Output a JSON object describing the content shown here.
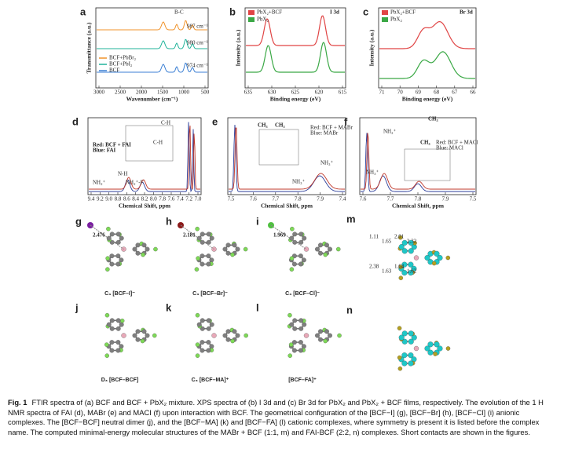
{
  "panels": {
    "a": {
      "label": "a",
      "ylabel": "Transmittance (a.u.)",
      "xlabel": "Wavenumber (cm⁻¹)",
      "xticks": [
        "3000",
        "2500",
        "2000",
        "1500",
        "1000",
        "500"
      ],
      "annotations": [
        "B-C",
        "987 cm⁻¹",
        "980 cm⁻¹",
        "974 cm⁻¹"
      ],
      "legend": [
        "BCF+PbBr₂",
        "BCF+PbI₂",
        "BCF"
      ]
    },
    "b": {
      "label": "b",
      "ylabel": "Intensity (a.u.)",
      "xlabel": "Binding energy (eV)",
      "xticks": [
        "635",
        "630",
        "625",
        "620",
        "615"
      ],
      "annotations": [
        "I 3d"
      ],
      "legend": [
        "PbX₂+BCF",
        "PbX₂"
      ]
    },
    "c": {
      "label": "c",
      "ylabel": "Intensity (a.u.)",
      "xlabel": "Binding energy (eV)",
      "xticks": [
        "71",
        "70",
        "69",
        "68",
        "67",
        "66"
      ],
      "annotations": [
        "Br 3d"
      ],
      "legend": [
        "PbX₂+BCF",
        "PbX₂"
      ]
    },
    "d": {
      "label": "d",
      "xlabel": "Chemical Shift, ppm",
      "xticks": [
        "9.4",
        "9.2",
        "9.0",
        "8.8",
        "8.6",
        "8.4",
        "8.2",
        "8.0",
        "7.8",
        "7.6",
        "7.4",
        "7.2",
        "7.0"
      ],
      "annotations": [
        "Red: BCF + FAI",
        "Blue: FAI",
        "C-H",
        "C-H",
        "N-H",
        "NH₂⁺-F",
        "NH₂⁺"
      ]
    },
    "e": {
      "label": "e",
      "xlabel": "Chemical Shift, ppm",
      "xticks": [
        "7.5",
        "7.6",
        "7.7",
        "7.8",
        "7.9",
        "7.4"
      ],
      "annotations": [
        "CH₃",
        "CH₃",
        "Red: BCF + MABr",
        "Blue: MABr",
        "NH₃⁺",
        "NH₃⁺"
      ]
    },
    "f": {
      "label": "f",
      "xlabel": "Chemical Shift, ppm",
      "xticks": [
        "7.6",
        "7.7",
        "7.8",
        "7.9",
        "7.5"
      ],
      "annotations": [
        "CH₃",
        "CH₃",
        "Red: BCF + MACl",
        "Blue: MACl",
        "NH₂⁺",
        "NH₃⁺"
      ]
    },
    "g": {
      "label": "g",
      "name": "C₃ [BCF–I]⁻",
      "distance": "2.476"
    },
    "h": {
      "label": "h",
      "name": "C₃ [BCF–Br]⁻",
      "distance": "2.181"
    },
    "i": {
      "label": "i",
      "name": "C₃ [BCF–Cl]⁻",
      "distance": "1.969"
    },
    "j": {
      "label": "j",
      "name": "D₃ [BCF–BCF]"
    },
    "k": {
      "label": "k",
      "name": "C₃ [BCF–MA]⁺"
    },
    "l": {
      "label": "l",
      "name": "[BCF–FA]⁺"
    },
    "m": {
      "label": "m",
      "distances": [
        "1.11",
        "1.65",
        "2.01",
        "2.32",
        "2.38",
        "1.63",
        "1.64",
        "1.62"
      ]
    },
    "n": {
      "label": "n"
    }
  },
  "caption": {
    "label": "Fig. 1",
    "text": "FTIR spectra of (a) BCF and BCF + PbX₂ mixture. XPS spectra of (b) I 3d and (c) Br 3d for PbX₂ and PbX₂ + BCF films, respectively. The evolution of the 1 H NMR spectra of FAI (d), MABr (e) and MACI (f) upon interaction with BCF. The geometrical configuration of the [BCF−I] (g), [BCF−Br] (h), [BCF−Cl] (i) anionic complexes. The [BCF−BCF] neutral dimer (j), and the [BCF−MA] (k) and [BCF−FA] (l) cationic complexes, where symmetry is present it is listed before the complex name. The computed minimal-energy molecular structures of the MABr + BCF (1:1, m) and FAI-BCF (2:2, n) complexes. Short contacts are shown in the figures."
  }
}
